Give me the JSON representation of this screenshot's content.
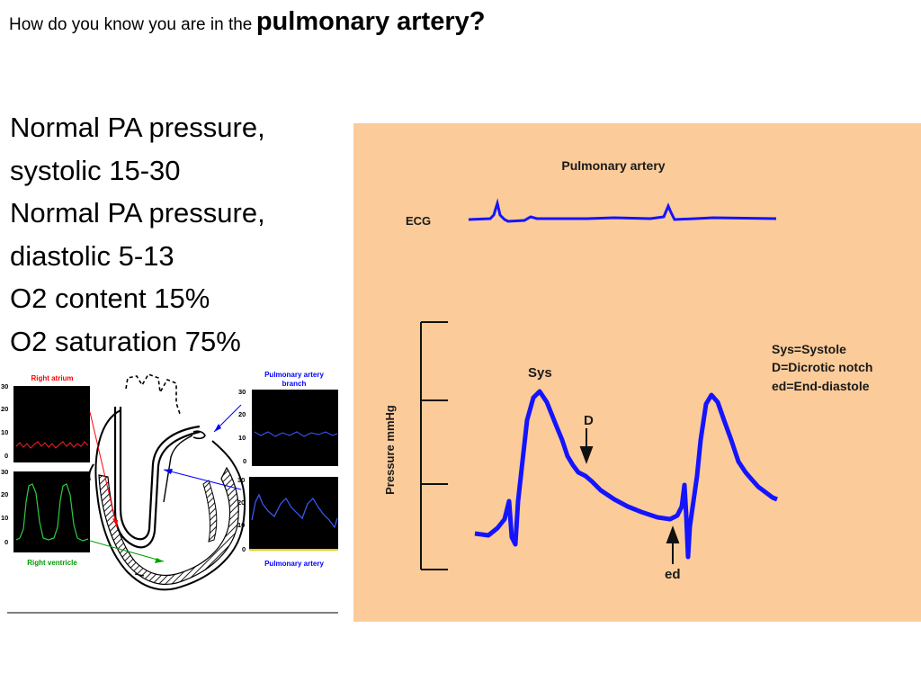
{
  "slide": {
    "title_lead": "How do you know you are in the",
    "title_emphasis": "pulmonary artery?",
    "facts": [
      "Normal PA pressure,",
      "systolic 15-30",
      "Normal PA pressure,",
      "diastolic 5-13",
      "O2 content 15%",
      "O2 saturation 75%"
    ]
  },
  "waveform_panel": {
    "title": "Pulmonary artery",
    "ecg_label": "ECG",
    "y_axis_label": "Pressure mmHg",
    "sys_label": "Sys",
    "dicrotic_label": "D",
    "ed_label": "ed",
    "legend": [
      "Sys=Systole",
      "D=Dicrotic notch",
      "ed=End-diastole"
    ],
    "background": "#fbcb99",
    "trace_color": "#1414ff"
  },
  "heart_figure": {
    "right_atrium": {
      "label": "Right atrium",
      "ticks": [
        "30",
        "20",
        "10",
        "0"
      ],
      "color": "#ff0000"
    },
    "right_ventricle": {
      "label": "Right ventricle",
      "ticks": [
        "30",
        "20",
        "10",
        "0"
      ],
      "color": "#00a000"
    },
    "pa_branch": {
      "label_line1": "Pulmonary artery",
      "label_line2": "branch",
      "ticks": [
        "30",
        "20",
        "10",
        "0"
      ],
      "color": "#0000ff"
    },
    "pulmonary_artery": {
      "label": "Pulmonary artery",
      "ticks": [
        "30",
        "20",
        "10",
        "0"
      ],
      "color": "#0000ff"
    }
  }
}
